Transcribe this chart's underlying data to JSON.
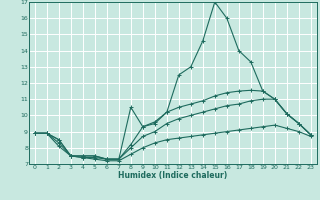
{
  "xlabel": "Humidex (Indice chaleur)",
  "xlim": [
    -0.5,
    23.5
  ],
  "ylim": [
    7,
    17
  ],
  "xticks": [
    0,
    1,
    2,
    3,
    4,
    5,
    6,
    7,
    8,
    9,
    10,
    11,
    12,
    13,
    14,
    15,
    16,
    17,
    18,
    19,
    20,
    21,
    22,
    23
  ],
  "yticks": [
    7,
    8,
    9,
    10,
    11,
    12,
    13,
    14,
    15,
    16,
    17
  ],
  "bg_color": "#c8e8e0",
  "line_color": "#1e6b5e",
  "grid_color": "#ffffff",
  "lines": [
    {
      "x": [
        0,
        1,
        2,
        3,
        4,
        5,
        6,
        7,
        8,
        9,
        10,
        11,
        12,
        13,
        14,
        15,
        16,
        17,
        18,
        19,
        20,
        21,
        22,
        23
      ],
      "y": [
        8.9,
        8.9,
        8.5,
        7.5,
        7.5,
        7.5,
        7.3,
        7.3,
        8.2,
        9.3,
        9.5,
        10.2,
        12.5,
        13.0,
        14.6,
        17.0,
        16.0,
        14.0,
        13.3,
        11.5,
        11.0,
        10.1,
        9.5,
        8.8
      ]
    },
    {
      "x": [
        0,
        1,
        2,
        3,
        4,
        5,
        6,
        7,
        8,
        9,
        10,
        11,
        12,
        13,
        14,
        15,
        16,
        17,
        18,
        19,
        20,
        21,
        22,
        23
      ],
      "y": [
        8.9,
        8.9,
        8.5,
        7.5,
        7.5,
        7.5,
        7.3,
        7.3,
        10.5,
        9.3,
        9.6,
        10.2,
        10.5,
        10.7,
        10.9,
        11.2,
        11.4,
        11.5,
        11.55,
        11.5,
        11.0,
        10.1,
        9.5,
        8.8
      ]
    },
    {
      "x": [
        0,
        1,
        2,
        3,
        4,
        5,
        6,
        7,
        8,
        9,
        10,
        11,
        12,
        13,
        14,
        15,
        16,
        17,
        18,
        19,
        20,
        21,
        22,
        23
      ],
      "y": [
        8.9,
        8.9,
        8.3,
        7.5,
        7.4,
        7.4,
        7.3,
        7.3,
        8.0,
        8.7,
        9.0,
        9.5,
        9.8,
        10.0,
        10.2,
        10.4,
        10.6,
        10.7,
        10.9,
        11.0,
        11.0,
        10.1,
        9.5,
        8.8
      ]
    },
    {
      "x": [
        0,
        1,
        2,
        3,
        4,
        5,
        6,
        7,
        8,
        9,
        10,
        11,
        12,
        13,
        14,
        15,
        16,
        17,
        18,
        19,
        20,
        21,
        22,
        23
      ],
      "y": [
        8.9,
        8.9,
        8.1,
        7.5,
        7.4,
        7.3,
        7.2,
        7.2,
        7.6,
        8.0,
        8.3,
        8.5,
        8.6,
        8.7,
        8.8,
        8.9,
        9.0,
        9.1,
        9.2,
        9.3,
        9.4,
        9.2,
        9.0,
        8.7
      ]
    }
  ]
}
